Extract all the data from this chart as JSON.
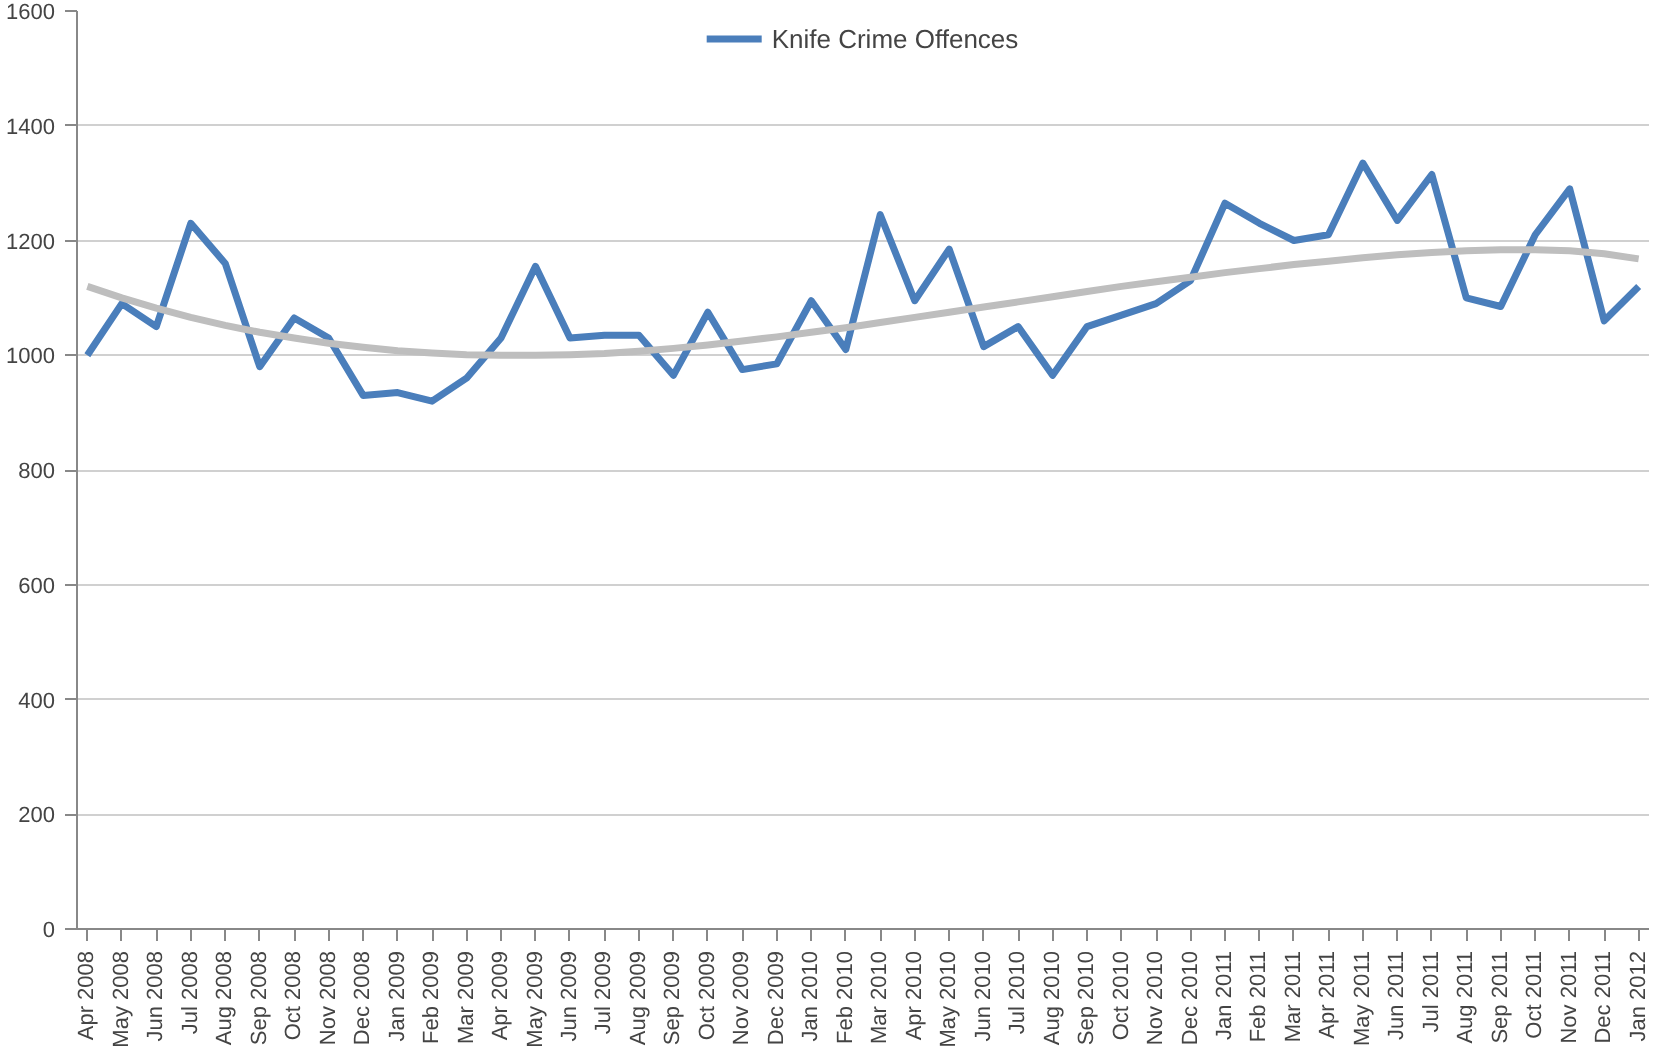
{
  "chart_data": {
    "type": "line",
    "categories": [
      "Apr 2008",
      "May 2008",
      "Jun 2008",
      "Jul 2008",
      "Aug 2008",
      "Sep 2008",
      "Oct 2008",
      "Nov 2008",
      "Dec 2008",
      "Jan 2009",
      "Feb 2009",
      "Mar 2009",
      "Apr 2009",
      "May 2009",
      "Jun 2009",
      "Jul 2009",
      "Aug 2009",
      "Sep 2009",
      "Oct 2009",
      "Nov 2009",
      "Dec 2009",
      "Jan 2010",
      "Feb 2010",
      "Mar 2010",
      "Apr 2010",
      "May 2010",
      "Jun 2010",
      "Jul 2010",
      "Aug 2010",
      "Sep 2010",
      "Oct 2010",
      "Nov 2010",
      "Dec 2010",
      "Jan 2011",
      "Feb 2011",
      "Mar 2011",
      "Apr 2011",
      "May 2011",
      "Jun 2011",
      "Jul 2011",
      "Aug 2011",
      "Sep 2011",
      "Oct 2011",
      "Nov 2011",
      "Dec 2011",
      "Jan 2012"
    ],
    "series": [
      {
        "name": "Knife Crime Offences",
        "color": "#4a7ebb",
        "values": [
          1000,
          1090,
          1050,
          1230,
          1160,
          980,
          1065,
          1030,
          930,
          935,
          920,
          960,
          1030,
          1155,
          1030,
          1035,
          1035,
          965,
          1075,
          975,
          985,
          1095,
          1010,
          1245,
          1095,
          1185,
          1015,
          1050,
          965,
          1050,
          1070,
          1090,
          1130,
          1265,
          1230,
          1200,
          1210,
          1335,
          1235,
          1315,
          1100,
          1085,
          1210,
          1290,
          1060,
          1120
        ]
      },
      {
        "color": "#bebebe",
        "values": [
          1120,
          1100,
          1082,
          1066,
          1052,
          1040,
          1030,
          1021,
          1014,
          1008,
          1004,
          1001,
          1000,
          1000,
          1001,
          1003,
          1007,
          1012,
          1018,
          1025,
          1032,
          1040,
          1048,
          1057,
          1066,
          1075,
          1084,
          1093,
          1102,
          1111,
          1120,
          1128,
          1136,
          1144,
          1151,
          1158,
          1164,
          1170,
          1175,
          1179,
          1182,
          1184,
          1184,
          1182,
          1177,
          1168
        ]
      }
    ],
    "ylim": [
      0,
      1600
    ],
    "yticks": [
      0,
      200,
      400,
      600,
      800,
      1000,
      1200,
      1400,
      1600
    ],
    "grid": "y",
    "legend": "top",
    "marker": "none",
    "line_style": "solid"
  }
}
